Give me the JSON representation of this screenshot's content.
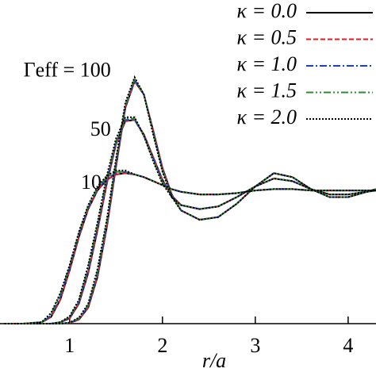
{
  "chart_data": {
    "type": "line",
    "xlabel": "r/a",
    "curve_labels": [
      "Γeff = 100",
      "50",
      "10"
    ],
    "x": [
      0.3,
      0.5,
      0.7,
      0.8,
      0.9,
      1.0,
      1.1,
      1.2,
      1.3,
      1.4,
      1.5,
      1.6,
      1.7,
      1.8,
      1.9,
      2.0,
      2.1,
      2.2,
      2.4,
      2.6,
      2.8,
      3.0,
      3.2,
      3.4,
      3.6,
      3.8,
      4.0,
      4.2,
      4.3
    ],
    "xlim": [
      0.25,
      4.3
    ],
    "ylim": [
      0,
      2.43
    ],
    "xticks": [
      1,
      2,
      3,
      4
    ],
    "legend": "upper right",
    "series": [
      {
        "name": "κ = 0.0",
        "color": "#000000",
        "dash": "solid",
        "values": [
          [
            0,
            0,
            0,
            0,
            0,
            0.005,
            0.03,
            0.12,
            0.35,
            0.72,
            1.18,
            1.62,
            1.82,
            1.72,
            1.45,
            1.17,
            0.97,
            0.85,
            0.78,
            0.8,
            0.9,
            1.03,
            1.13,
            1.1,
            1.01,
            0.95,
            0.95,
            0.99,
            1.01
          ],
          [
            0,
            0,
            0,
            0,
            0.01,
            0.04,
            0.15,
            0.38,
            0.7,
            1.05,
            1.35,
            1.52,
            1.53,
            1.42,
            1.25,
            1.08,
            0.96,
            0.89,
            0.86,
            0.88,
            0.95,
            1.03,
            1.09,
            1.07,
            1.01,
            0.97,
            0.97,
            0.99,
            1.0
          ],
          [
            0,
            0,
            0.01,
            0.05,
            0.18,
            0.4,
            0.65,
            0.86,
            1.0,
            1.08,
            1.12,
            1.13,
            1.12,
            1.1,
            1.07,
            1.04,
            1.01,
            0.99,
            0.97,
            0.97,
            0.98,
            1.0,
            1.01,
            1.01,
            1.0,
            1.0,
            1.0,
            1.0,
            1.0
          ]
        ]
      },
      {
        "name": "κ = 0.5",
        "color": "#e41a1c",
        "dash": "dashed",
        "values": [
          [
            0,
            0,
            0,
            0,
            0,
            0.005,
            0.03,
            0.12,
            0.35,
            0.72,
            1.18,
            1.62,
            1.82,
            1.72,
            1.45,
            1.17,
            0.97,
            0.85,
            0.78,
            0.8,
            0.9,
            1.03,
            1.13,
            1.1,
            1.01,
            0.95,
            0.95,
            0.99,
            1.01
          ],
          [
            0,
            0,
            0,
            0,
            0.01,
            0.04,
            0.15,
            0.38,
            0.7,
            1.05,
            1.35,
            1.52,
            1.53,
            1.42,
            1.25,
            1.08,
            0.96,
            0.89,
            0.86,
            0.88,
            0.95,
            1.03,
            1.09,
            1.07,
            1.01,
            0.97,
            0.97,
            0.99,
            1.0
          ],
          [
            0,
            0,
            0.01,
            0.05,
            0.18,
            0.4,
            0.65,
            0.86,
            1.0,
            1.08,
            1.12,
            1.13,
            1.12,
            1.1,
            1.07,
            1.04,
            1.01,
            0.99,
            0.97,
            0.97,
            0.98,
            1.0,
            1.01,
            1.01,
            1.0,
            1.0,
            1.0,
            1.0,
            1.0
          ]
        ]
      },
      {
        "name": "κ = 1.0",
        "color": "#1f3fbf",
        "dash": "dashdot",
        "values": [
          [
            0,
            0,
            0,
            0,
            0,
            0.006,
            0.035,
            0.13,
            0.37,
            0.74,
            1.2,
            1.63,
            1.83,
            1.72,
            1.44,
            1.16,
            0.96,
            0.85,
            0.78,
            0.8,
            0.9,
            1.03,
            1.13,
            1.1,
            1.01,
            0.95,
            0.95,
            0.99,
            1.01
          ],
          [
            0,
            0,
            0,
            0,
            0.01,
            0.045,
            0.16,
            0.4,
            0.72,
            1.07,
            1.36,
            1.53,
            1.53,
            1.41,
            1.24,
            1.07,
            0.96,
            0.89,
            0.86,
            0.88,
            0.95,
            1.03,
            1.09,
            1.07,
            1.01,
            0.97,
            0.97,
            0.99,
            1.0
          ],
          [
            0,
            0,
            0.01,
            0.06,
            0.2,
            0.42,
            0.67,
            0.87,
            1.01,
            1.09,
            1.13,
            1.14,
            1.12,
            1.1,
            1.07,
            1.04,
            1.01,
            0.99,
            0.97,
            0.97,
            0.98,
            1.0,
            1.01,
            1.01,
            1.0,
            1.0,
            1.0,
            1.0,
            1.0
          ]
        ]
      },
      {
        "name": "κ = 1.5",
        "color": "#2e8b2e",
        "dash": "dashdotdot",
        "values": [
          [
            0,
            0,
            0,
            0,
            0,
            0.007,
            0.04,
            0.14,
            0.39,
            0.76,
            1.22,
            1.64,
            1.84,
            1.72,
            1.43,
            1.15,
            0.96,
            0.85,
            0.78,
            0.8,
            0.9,
            1.03,
            1.13,
            1.1,
            1.01,
            0.95,
            0.95,
            0.99,
            1.01
          ],
          [
            0,
            0,
            0,
            0,
            0.01,
            0.05,
            0.17,
            0.42,
            0.74,
            1.09,
            1.37,
            1.54,
            1.54,
            1.41,
            1.23,
            1.06,
            0.95,
            0.89,
            0.86,
            0.88,
            0.95,
            1.03,
            1.09,
            1.07,
            1.01,
            0.97,
            0.97,
            0.99,
            1.0
          ],
          [
            0,
            0,
            0.01,
            0.07,
            0.22,
            0.43,
            0.68,
            0.88,
            1.02,
            1.1,
            1.14,
            1.14,
            1.12,
            1.1,
            1.07,
            1.04,
            1.01,
            0.99,
            0.97,
            0.97,
            0.98,
            1.0,
            1.01,
            1.01,
            1.0,
            1.0,
            1.0,
            1.0,
            1.0
          ]
        ]
      },
      {
        "name": "κ = 2.0",
        "color": "#000000",
        "dash": "dotted",
        "values": [
          [
            0,
            0,
            0,
            0,
            0,
            0.008,
            0.045,
            0.15,
            0.41,
            0.78,
            1.24,
            1.66,
            1.85,
            1.72,
            1.42,
            1.14,
            0.95,
            0.85,
            0.78,
            0.8,
            0.9,
            1.03,
            1.13,
            1.1,
            1.01,
            0.95,
            0.95,
            0.99,
            1.01
          ],
          [
            0,
            0,
            0,
            0,
            0.012,
            0.055,
            0.18,
            0.44,
            0.76,
            1.11,
            1.39,
            1.55,
            1.55,
            1.41,
            1.22,
            1.05,
            0.95,
            0.89,
            0.86,
            0.88,
            0.95,
            1.03,
            1.09,
            1.07,
            1.01,
            0.97,
            0.97,
            0.99,
            1.0
          ],
          [
            0,
            0,
            0.012,
            0.08,
            0.23,
            0.44,
            0.69,
            0.89,
            1.03,
            1.11,
            1.15,
            1.15,
            1.12,
            1.1,
            1.07,
            1.04,
            1.01,
            0.99,
            0.97,
            0.97,
            0.98,
            1.0,
            1.01,
            1.01,
            1.0,
            1.0,
            1.0,
            1.0,
            1.0
          ]
        ]
      }
    ]
  }
}
